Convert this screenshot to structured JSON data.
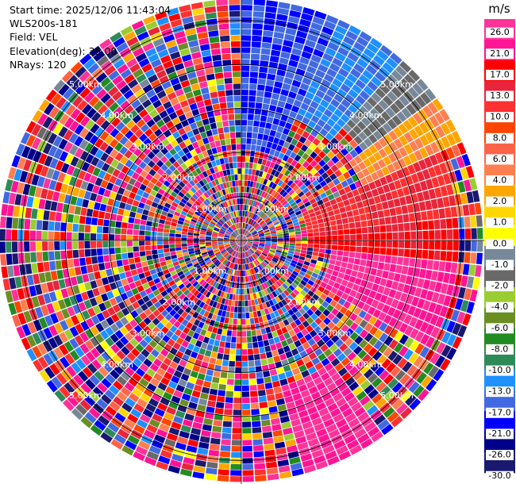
{
  "header": {
    "start_time": "Start time: 2025/12/06 11:43:04",
    "instrument": "WLS200s-181",
    "field": "Field: VEL",
    "elevation": "Elevation(deg): 35.00",
    "nrays": "NRays: 120"
  },
  "chart_data": {
    "type": "heatmap",
    "projection": "polar-ppi",
    "field": "VEL",
    "elevation_deg": 35.0,
    "n_rays": 120,
    "max_range_km": 5.5,
    "range_rings_km": [
      1,
      2,
      3,
      4,
      5
    ],
    "ring_labels": [
      "1.00km",
      "2.00km",
      "3.00km",
      "4.00km",
      "5.00km"
    ],
    "colorbar": {
      "unit": "m/s",
      "ticks": [
        "26.0",
        "21.0",
        "17.0",
        "13.0",
        "10.0",
        "8.0",
        "6.0",
        "4.0",
        "2.0",
        "1.0",
        "0.0",
        "-1.0",
        "-2.0",
        "-4.0",
        "-6.0",
        "-8.0",
        "-10.0",
        "-13.0",
        "-17.0",
        "-21.0",
        "-26.0",
        "-30.0"
      ],
      "band_colors": [
        "#ff3399",
        "#ff1493",
        "#ff0000",
        "#e8253a",
        "#ff3030",
        "#ff4500",
        "#ff6347",
        "#ff7f50",
        "#ffa500",
        "#ffd700",
        "#ffff00",
        "#778899",
        "#696969",
        "#9acd32",
        "#6b8e23",
        "#228b22",
        "#2e8b57",
        "#1e90ff",
        "#4169e1",
        "#0000ff",
        "#00008b",
        "#191970"
      ]
    },
    "coherent_regions": [
      {
        "azimuth_deg": [
          0,
          24
        ],
        "range_km": [
          2.0,
          5.5
        ],
        "velocity_ms": -17.0
      },
      {
        "azimuth_deg": [
          24,
          42
        ],
        "range_km": [
          3.0,
          5.5
        ],
        "velocity_ms": -13.0
      },
      {
        "azimuth_deg": [
          42,
          55
        ],
        "range_km": [
          3.5,
          5.5
        ],
        "velocity_ms": -1.0
      },
      {
        "azimuth_deg": [
          55,
          66
        ],
        "range_km": [
          3.0,
          5.5
        ],
        "velocity_ms": 4.0
      },
      {
        "azimuth_deg": [
          66,
          84
        ],
        "range_km": [
          1.5,
          5.0
        ],
        "velocity_ms": 13.0
      },
      {
        "azimuth_deg": [
          84,
          97
        ],
        "range_km": [
          1.5,
          5.0
        ],
        "velocity_ms": 17.0
      },
      {
        "azimuth_deg": [
          97,
          120
        ],
        "range_km": [
          2.0,
          5.0
        ],
        "velocity_ms": 26.0
      },
      {
        "azimuth_deg": [
          145,
          165
        ],
        "range_km": [
          3.5,
          5.5
        ],
        "velocity_ms": 26.0
      }
    ]
  }
}
